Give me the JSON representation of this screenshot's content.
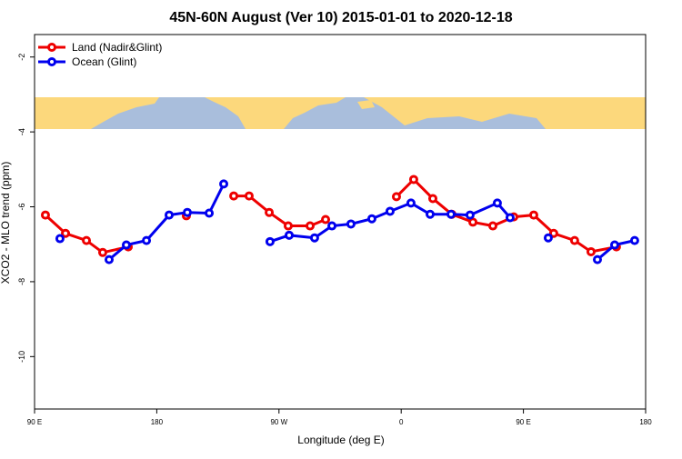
{
  "chart_data": {
    "type": "line",
    "title": "45N-60N August (Ver 10)   2015-01-01 to 2020-12-18",
    "xlabel": "Longitude (deg E)",
    "ylabel": "XCO2 - MLO trend (ppm)",
    "xlim": [
      90,
      540
    ],
    "ylim": [
      -11.4,
      -1.4
    ],
    "xticks": [
      {
        "value": 90,
        "label": "90 E"
      },
      {
        "value": 180,
        "label": "180"
      },
      {
        "value": 270,
        "label": "90 W"
      },
      {
        "value": 360,
        "label": "0"
      },
      {
        "value": 450,
        "label": "90 E"
      },
      {
        "value": 540,
        "label": "180"
      }
    ],
    "yticks": [
      -2,
      -4,
      -6,
      -8,
      -10
    ],
    "legend": "top-left",
    "series": [
      {
        "name": "Land (Nadir&Glint)",
        "color": "#ee0000",
        "x": [
          98.0,
          112.8,
          128.2,
          140.2,
          159.0,
          180,
          201.8,
          220,
          236.7,
          248.0,
          262.8,
          276.8,
          292.9,
          304.3,
          330,
          356.5,
          369.2,
          383.3,
          397.3,
          412.8,
          427.5,
          442.9,
          457.6,
          472.3,
          487.7,
          499.8,
          518.5
        ],
        "values": [
          -6.22,
          -6.71,
          -6.9,
          -7.22,
          -7.07,
          null,
          -6.24,
          null,
          -5.71,
          -5.71,
          -6.15,
          -6.51,
          -6.51,
          -6.34,
          null,
          -5.73,
          -5.27,
          -5.78,
          -6.2,
          -6.41,
          -6.51,
          -6.27,
          -6.22,
          -6.71,
          -6.9,
          -7.2,
          -7.07
        ]
      },
      {
        "name": "Ocean (Glint)",
        "color": "#0000ee",
        "x": [
          108.7,
          125,
          144.9,
          157.6,
          172.4,
          189.1,
          202.5,
          218.6,
          229.3,
          245,
          263.4,
          277.5,
          296.2,
          309.0,
          323.0,
          338.4,
          351.8,
          367.2,
          381.3,
          396.7,
          410.7,
          430.8,
          440.2,
          455,
          468.3,
          485,
          504.5,
          517.2,
          531.9
        ],
        "values": [
          -6.85,
          null,
          -7.41,
          -7.02,
          -6.9,
          -6.22,
          -6.15,
          -6.17,
          -5.39,
          null,
          -6.93,
          -6.76,
          -6.83,
          -6.51,
          -6.46,
          -6.32,
          -6.12,
          -5.9,
          -6.2,
          -6.2,
          -6.22,
          -5.9,
          -6.29,
          null,
          -6.83,
          null,
          -7.41,
          -7.02,
          -6.9
        ]
      }
    ]
  }
}
